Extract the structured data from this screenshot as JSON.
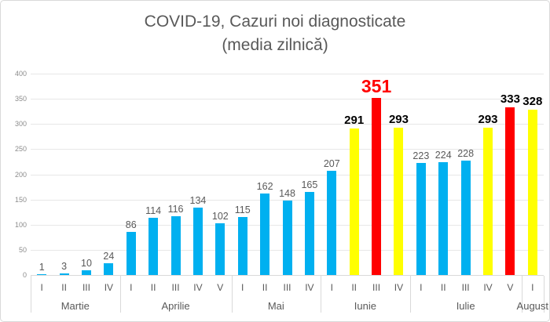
{
  "title": {
    "line1": "COVID-19, Cazuri noi diagnosticate",
    "line2": "(media zilnică)"
  },
  "colors": {
    "blue": "#00b0f0",
    "yellow": "#ffff00",
    "red": "#ff0000",
    "label_gray": "#595959",
    "label_black": "#000000",
    "label_red": "#ff0000",
    "grid": "#e7e7e7",
    "axis": "#d9d9d9",
    "tick_text": "#8c8c8c"
  },
  "chart_data": {
    "type": "bar",
    "title": "COVID-19, Cazuri noi diagnosticate (media zilnică)",
    "xlabel": "",
    "ylabel": "",
    "ylim": [
      0,
      400
    ],
    "yticks": [
      0,
      50,
      100,
      150,
      200,
      250,
      300,
      350,
      400
    ],
    "grid": true,
    "legend": false,
    "groups": [
      {
        "month": "Martie",
        "weeks": [
          "I",
          "II",
          "III",
          "IV"
        ],
        "values": [
          1,
          3,
          10,
          24
        ],
        "bar_colors": [
          "blue",
          "blue",
          "blue",
          "blue"
        ],
        "label_styles": [
          "normal",
          "normal",
          "normal",
          "normal"
        ]
      },
      {
        "month": "Aprilie",
        "weeks": [
          "I",
          "II",
          "III",
          "IV",
          "V"
        ],
        "values": [
          86,
          114,
          116,
          134,
          102
        ],
        "bar_colors": [
          "blue",
          "blue",
          "blue",
          "blue",
          "blue"
        ],
        "label_styles": [
          "normal",
          "normal",
          "normal",
          "normal",
          "normal"
        ]
      },
      {
        "month": "Mai",
        "weeks": [
          "I",
          "II",
          "III",
          "IV"
        ],
        "values": [
          115,
          162,
          148,
          165
        ],
        "bar_colors": [
          "blue",
          "blue",
          "blue",
          "blue"
        ],
        "label_styles": [
          "normal",
          "normal",
          "normal",
          "normal"
        ]
      },
      {
        "month": "Iunie",
        "weeks": [
          "I",
          "II",
          "III",
          "IV"
        ],
        "values": [
          207,
          291,
          351,
          293
        ],
        "bar_colors": [
          "blue",
          "yellow",
          "red",
          "yellow"
        ],
        "label_styles": [
          "normal",
          "bold",
          "highlight",
          "bold"
        ]
      },
      {
        "month": "Iulie",
        "weeks": [
          "I",
          "II",
          "III",
          "IV",
          "V"
        ],
        "values": [
          223,
          224,
          228,
          293,
          333
        ],
        "bar_colors": [
          "blue",
          "blue",
          "blue",
          "yellow",
          "red"
        ],
        "label_styles": [
          "normal",
          "normal",
          "normal",
          "bold",
          "bold"
        ]
      },
      {
        "month": "August",
        "weeks": [
          "I"
        ],
        "values": [
          328
        ],
        "bar_colors": [
          "yellow"
        ],
        "label_styles": [
          "bold"
        ]
      }
    ]
  }
}
